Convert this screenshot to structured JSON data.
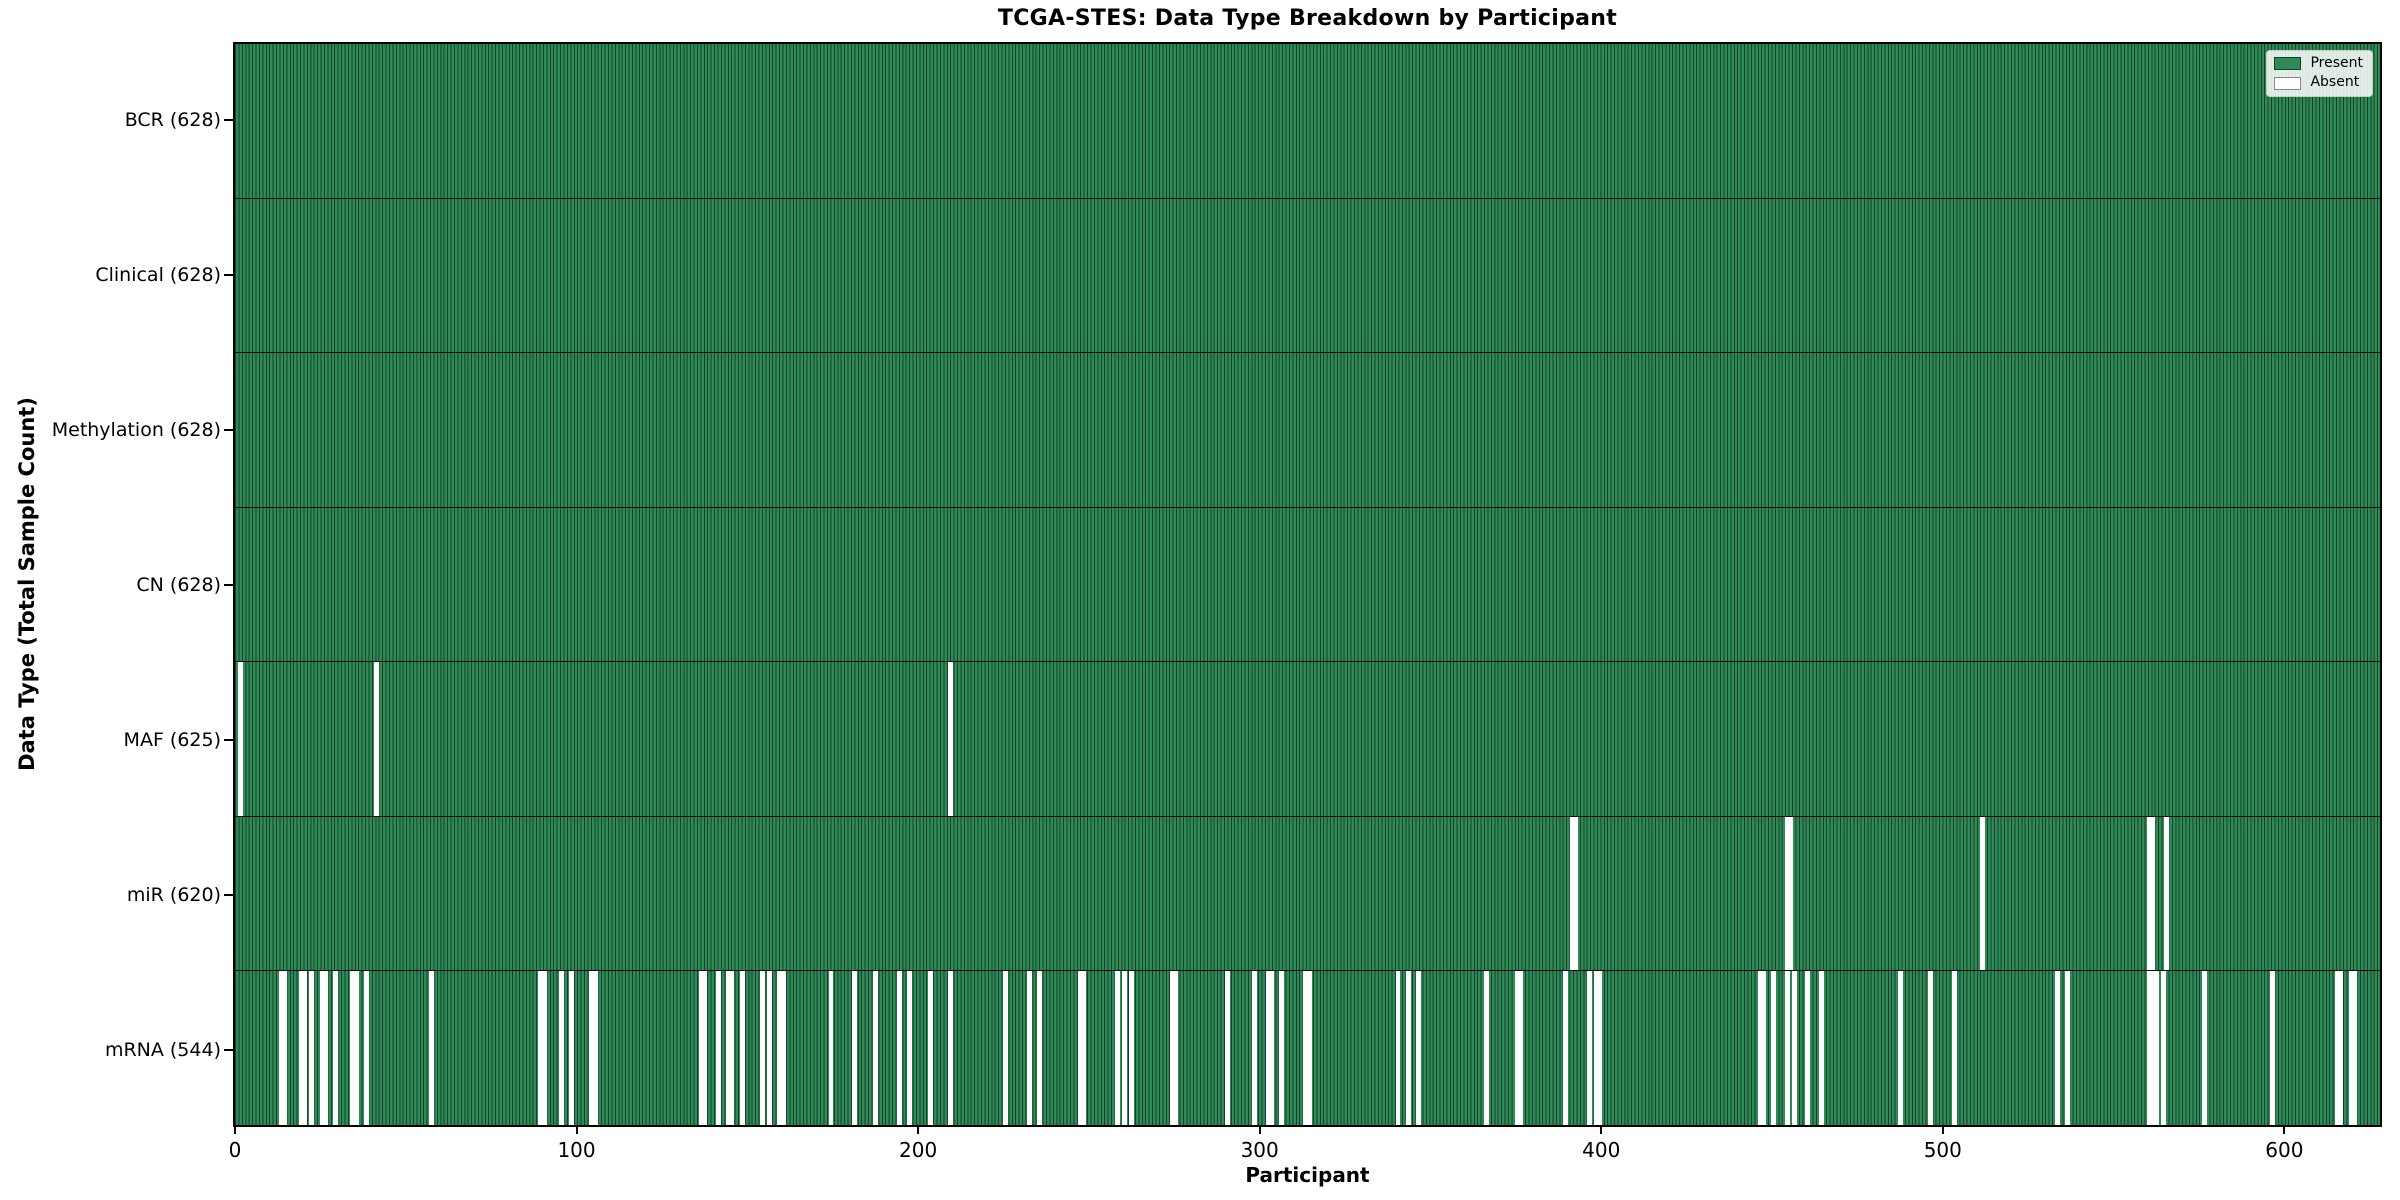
{
  "figure": {
    "title": "TCGA-STES: Data Type Breakdown by Participant",
    "xlabel": "Participant",
    "ylabel": "Data Type (Total Sample Count)"
  },
  "chart_data": {
    "type": "heatmap",
    "title": "TCGA-STES: Data Type Breakdown by Participant",
    "xlabel": "Participant",
    "ylabel": "Data Type (Total Sample Count)",
    "x_min": 0,
    "x_max": 628,
    "x_ticks": [
      0,
      100,
      200,
      300,
      400,
      500,
      600
    ],
    "n_participants": 628,
    "grid": false,
    "legend_position": "upper right",
    "legend_items": [
      {
        "label": "Present",
        "color": "#2e8b57",
        "border": "#17402a"
      },
      {
        "label": "Absent",
        "color": "#ffffff",
        "border": "#888888"
      }
    ],
    "colors": {
      "present_fill": "#2e8b57",
      "bar_edge": "#17402a",
      "absent_fill": "#ffffff",
      "spine": "#000000"
    },
    "rows": [
      {
        "label": "BCR (628)",
        "data_type": "BCR",
        "present_count": 628,
        "absent_participants": []
      },
      {
        "label": "Clinical (628)",
        "data_type": "Clinical",
        "present_count": 628,
        "absent_participants": []
      },
      {
        "label": "Methylation (628)",
        "data_type": "Methylation",
        "present_count": 628,
        "absent_participants": []
      },
      {
        "label": "CN (628)",
        "data_type": "CN",
        "present_count": 628,
        "absent_participants": []
      },
      {
        "label": "MAF (625)",
        "data_type": "MAF",
        "present_count": 625,
        "absent_participants": [
          1,
          41,
          209
        ]
      },
      {
        "label": "miR (620)",
        "data_type": "miR",
        "present_count": 620,
        "absent_participants": [
          391,
          392,
          454,
          455,
          511,
          560,
          561,
          565
        ]
      },
      {
        "label": "mRNA (544)",
        "data_type": "mRNA",
        "present_count": 544,
        "absent_participants": [
          13,
          14,
          19,
          20,
          22,
          25,
          26,
          29,
          34,
          35,
          38,
          57,
          89,
          90,
          95,
          98,
          104,
          105,
          136,
          137,
          141,
          144,
          145,
          148,
          154,
          156,
          159,
          160,
          174,
          181,
          187,
          194,
          197,
          203,
          209,
          225,
          232,
          235,
          247,
          248,
          258,
          260,
          262,
          274,
          275,
          290,
          298,
          302,
          303,
          306,
          313,
          314,
          340,
          343,
          346,
          366,
          375,
          376,
          389,
          396,
          398,
          399,
          446,
          447,
          450,
          454,
          456,
          460,
          464,
          487,
          496,
          503,
          533,
          536,
          560,
          561,
          562,
          564,
          576,
          596,
          615,
          616,
          619,
          620
        ]
      }
    ]
  }
}
